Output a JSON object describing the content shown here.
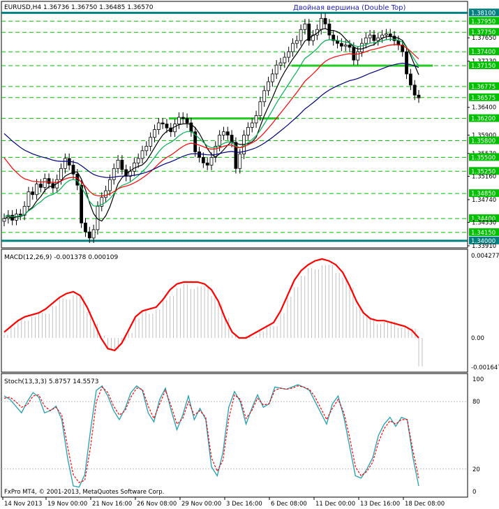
{
  "chart_data": [
    {
      "type": "candlestick",
      "symbol_header": "EURUSD,H4  1.36736 1.36750 1.36485 1.36570",
      "annotation": "Двойная вершина (Double Top)",
      "ylim": [
        1.3391,
        1.3828
      ],
      "y_ticks": [
        "1.38100",
        "1.37950",
        "1.37750",
        "1.37650",
        "1.37400",
        "1.37230",
        "1.37150",
        "1.36775",
        "1.36575",
        "1.36400",
        "1.36200",
        "1.35900",
        "1.35800",
        "1.35570",
        "1.35500",
        "1.35250",
        "1.35160",
        "1.34850",
        "1.34740",
        "1.34400",
        "1.34330",
        "1.34150",
        "1.34000",
        "1.33910"
      ],
      "highlighted_levels": [
        "1.38100",
        "1.37950",
        "1.37750",
        "1.37400",
        "1.37150",
        "1.36775",
        "1.36575",
        "1.36200",
        "1.35800",
        "1.35500",
        "1.35250",
        "1.34850",
        "1.34400",
        "1.34150",
        "1.34000"
      ],
      "close_path": [
        1.344,
        1.3446,
        1.3437,
        1.3448,
        1.3446,
        1.3462,
        1.3488,
        1.3483,
        1.3502,
        1.3496,
        1.3512,
        1.3503,
        1.3495,
        1.351,
        1.353,
        1.3548,
        1.3536,
        1.352,
        1.35,
        1.3432,
        1.3416,
        1.3405,
        1.342,
        1.3462,
        1.3478,
        1.349,
        1.351,
        1.353,
        1.3545,
        1.3528,
        1.3516,
        1.3525,
        1.354,
        1.3548,
        1.3562,
        1.357,
        1.3586,
        1.36,
        1.3612,
        1.361,
        1.3603,
        1.3596,
        1.361,
        1.3622,
        1.362,
        1.3612,
        1.3596,
        1.356,
        1.355,
        1.354,
        1.3536,
        1.355,
        1.357,
        1.359,
        1.3596,
        1.359,
        1.3577,
        1.353,
        1.3556,
        1.359,
        1.3604,
        1.3612,
        1.3625,
        1.365,
        1.367,
        1.3686,
        1.37,
        1.3716,
        1.372,
        1.373,
        1.374,
        1.3755,
        1.376,
        1.378,
        1.379,
        1.376,
        1.377,
        1.378,
        1.38,
        1.379,
        1.377,
        1.376,
        1.3755,
        1.375,
        1.3752,
        1.3748,
        1.3725,
        1.374,
        1.3755,
        1.3765,
        1.377,
        1.376,
        1.3765,
        1.377,
        1.3772,
        1.3768,
        1.376,
        1.3752,
        1.374,
        1.37,
        1.368,
        1.3662,
        1.3657
      ]
    },
    {
      "type": "macd",
      "title": "MACD(12,26,9) -0.001378 0.000109",
      "y_ticks": [
        "0.004277",
        "0.00",
        "-0.001647"
      ],
      "signal_path": [
        0.0003,
        0.0006,
        0.0009,
        0.0011,
        0.0012,
        0.0013,
        0.0015,
        0.0018,
        0.0021,
        0.0023,
        0.0024,
        0.0022,
        0.0016,
        0.0008,
        0.0,
        -0.0006,
        -0.0007,
        -0.0003,
        0.0004,
        0.0011,
        0.0014,
        0.0015,
        0.0016,
        0.002,
        0.0025,
        0.0028,
        0.0029,
        0.0029,
        0.0029,
        0.0028,
        0.0025,
        0.0019,
        0.001,
        0.0003,
        0.0,
        0.0,
        0.0002,
        0.0004,
        0.0006,
        0.0008,
        0.0014,
        0.0022,
        0.003,
        0.0035,
        0.0038,
        0.004,
        0.0041,
        0.004,
        0.0038,
        0.0034,
        0.0027,
        0.0019,
        0.0013,
        0.001,
        0.0009,
        0.0009,
        0.0008,
        0.0007,
        0.0006,
        0.0004,
        0.0
      ]
    },
    {
      "type": "stochastic",
      "title": "Stoch(13,3,3) 5.8757 14.5573",
      "y_ticks": [
        "100",
        "80",
        "20",
        "0"
      ],
      "k_path": [
        85,
        82,
        76,
        70,
        80,
        88,
        84,
        70,
        72,
        76,
        64,
        30,
        5,
        4,
        15,
        55,
        90,
        94,
        85,
        72,
        64,
        74,
        88,
        94,
        90,
        70,
        62,
        82,
        92,
        72,
        55,
        68,
        85,
        64,
        74,
        64,
        22,
        14,
        35,
        75,
        89,
        80,
        60,
        74,
        86,
        75,
        78,
        93,
        92,
        91,
        93,
        95,
        93,
        90,
        80,
        70,
        60,
        78,
        85,
        66,
        40,
        14,
        12,
        20,
        30,
        50,
        60,
        66,
        58,
        66,
        64,
        30,
        5
      ],
      "d_path": [
        83,
        84,
        80,
        75,
        77,
        85,
        86,
        76,
        72,
        75,
        68,
        40,
        15,
        8,
        10,
        40,
        80,
        93,
        88,
        76,
        68,
        72,
        84,
        92,
        91,
        76,
        65,
        78,
        90,
        76,
        60,
        65,
        80,
        68,
        72,
        66,
        30,
        18,
        28,
        65,
        86,
        82,
        65,
        72,
        83,
        77,
        78,
        90,
        92,
        91,
        92,
        94,
        93,
        91,
        84,
        74,
        64,
        74,
        82,
        70,
        48,
        22,
        14,
        18,
        26,
        44,
        56,
        63,
        60,
        64,
        64,
        36,
        12
      ]
    }
  ],
  "x_labels": [
    "14 Nov 2013",
    "19 Nov 00:00",
    "21 Nov 16:00",
    "26 Nov 08:00",
    "29 Nov 00:00",
    "3 Dec 16:00",
    "6 Dec 08:00",
    "11 Dec 00:00",
    "13 Dec 16:00",
    "18 Dec 08:00"
  ],
  "copyright": "FxPro MT4, © 2001-2013, MetaQuotes Software Corp.",
  "colors": {
    "bull": "#000000",
    "bear": "#000000",
    "ma_fast": "#000000",
    "ma_green": "#00b050",
    "ma_red": "#ff0000",
    "ma_blue": "#000080",
    "level_line": "#00c000",
    "frame_hl": "#008080",
    "macd_signal": "#ff0000",
    "macd_hist": "#c0c0c0",
    "stoch_k": "#20a0b0",
    "stoch_d": "#ff0000"
  }
}
